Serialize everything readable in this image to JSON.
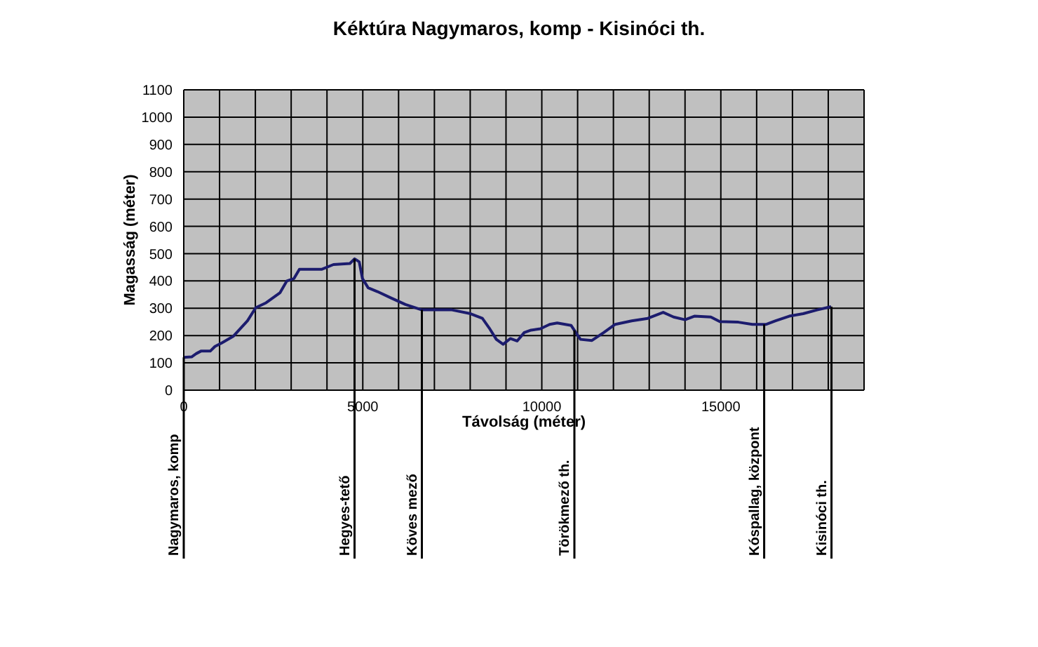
{
  "chart_data": {
    "type": "line",
    "title": "Kéktúra Nagymaros, komp - Kisinóci th.",
    "xlabel": "Távolság (méter)",
    "ylabel": "Magasság (méter)",
    "xlim": [
      0,
      19000
    ],
    "xticks": [
      0,
      {
        "value": 1000,
        "label": null
      },
      {
        "value": 2000,
        "label": null
      },
      {
        "value": 3000,
        "label": null
      },
      {
        "value": 4000,
        "label": null
      },
      5000,
      {
        "value": 6000,
        "label": null
      },
      {
        "value": 7000,
        "label": null
      },
      {
        "value": 8000,
        "label": null
      },
      {
        "value": 9000,
        "label": null
      },
      10000,
      {
        "value": 11000,
        "label": null
      },
      {
        "value": 12000,
        "label": null
      },
      {
        "value": 13000,
        "label": null
      },
      {
        "value": 14000,
        "label": null
      },
      15000,
      {
        "value": 16000,
        "label": null
      },
      {
        "value": 17000,
        "label": null
      },
      {
        "value": 18000,
        "label": null
      },
      {
        "value": 19000,
        "label": null
      }
    ],
    "ylim": [
      0,
      1100
    ],
    "yticks": [
      0,
      100,
      200,
      300,
      400,
      500,
      600,
      700,
      800,
      900,
      1000,
      1100
    ],
    "grid": true,
    "legend": false,
    "marker": "none",
    "line_style": "solid",
    "series": [
      {
        "color": "#1c1c6e",
        "x": [
          0,
          220,
          350,
          480,
          740,
          870,
          1060,
          1390,
          1780,
          2010,
          2300,
          2690,
          2880,
          3080,
          3230,
          3860,
          4180,
          4640,
          4770,
          4900,
          4990,
          5150,
          5410,
          5800,
          6190,
          6650,
          7490,
          8010,
          8340,
          8530,
          8730,
          8920,
          9120,
          9310,
          9510,
          9700,
          9960,
          10220,
          10430,
          10820,
          10950,
          11080,
          11400,
          11730,
          12050,
          12510,
          12960,
          13390,
          13680,
          14000,
          14260,
          14720,
          14970,
          15490,
          15880,
          16270,
          16530,
          16910,
          17300,
          17690,
          18080
        ],
        "values": [
          120,
          122,
          134,
          143,
          143,
          160,
          173,
          198,
          254,
          302,
          320,
          357,
          400,
          409,
          443,
          443,
          460,
          464,
          481,
          470,
          409,
          375,
          361,
          337,
          314,
          294,
          294,
          280,
          263,
          228,
          186,
          168,
          189,
          180,
          211,
          220,
          225,
          241,
          246,
          237,
          211,
          186,
          182,
          211,
          241,
          254,
          263,
          285,
          268,
          258,
          271,
          268,
          251,
          249,
          241,
          241,
          254,
          271,
          280,
          294,
          306
        ]
      }
    ],
    "ref_lines": [
      {
        "axis": "x",
        "value": 0,
        "label": "Nagymaros, komp",
        "color": "#000000"
      },
      {
        "axis": "x",
        "value": 4770,
        "label": "Hegyes-tető",
        "color": "#000000"
      },
      {
        "axis": "x",
        "value": 6650,
        "label": "Köves mező",
        "color": "#000000"
      },
      {
        "axis": "x",
        "value": 10910,
        "label": "Törökmező th.",
        "color": "#000000"
      },
      {
        "axis": "x",
        "value": 16210,
        "label": "Kóspallag, központ",
        "color": "#000000"
      },
      {
        "axis": "x",
        "value": 18090,
        "label": "Kisinóci th.",
        "color": "#000000"
      }
    ]
  }
}
